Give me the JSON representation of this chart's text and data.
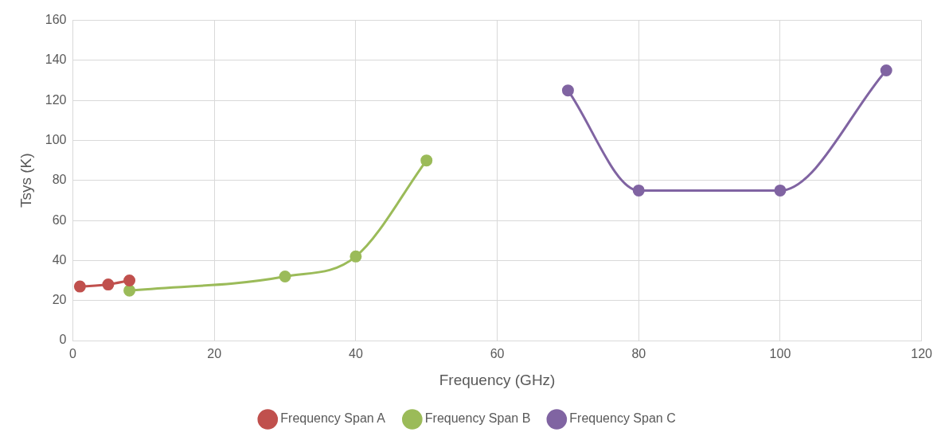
{
  "chart_data": {
    "type": "line",
    "xlabel": "Frequency (GHz)",
    "ylabel": "Tsys (K)",
    "xlim": [
      0,
      120
    ],
    "xticks": [
      0,
      20,
      40,
      60,
      80,
      100,
      120
    ],
    "ylim": [
      0,
      160
    ],
    "yticks": [
      0,
      20,
      40,
      60,
      80,
      100,
      120,
      140,
      160
    ],
    "grid": true,
    "legend": "bottom",
    "marker": "circle",
    "series": [
      {
        "name": "Frequency Span A",
        "color": "#c0504d",
        "x": [
          1,
          5,
          8
        ],
        "values": [
          27,
          28,
          30
        ]
      },
      {
        "name": "Frequency Span B",
        "color": "#9bbb59",
        "x": [
          8,
          30,
          40,
          50
        ],
        "values": [
          25,
          32,
          42,
          90
        ]
      },
      {
        "name": "Frequency Span C",
        "color": "#8064a2",
        "x": [
          70,
          80,
          100,
          115
        ],
        "values": [
          125,
          75,
          75,
          135
        ]
      }
    ]
  }
}
